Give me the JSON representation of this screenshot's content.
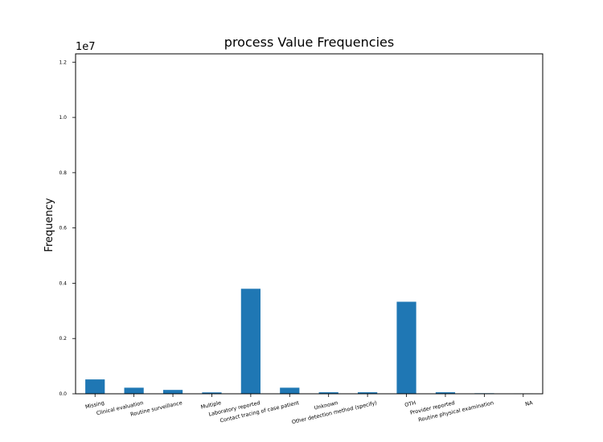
{
  "chart_data": {
    "type": "bar",
    "title": "process Value Frequencies",
    "xlabel": "",
    "ylabel": "Frequency",
    "y_multiplier": "1e7",
    "ylim": [
      0,
      12300000
    ],
    "yticks": [
      0,
      2000000,
      4000000,
      6000000,
      8000000,
      10000000,
      12000000
    ],
    "ytick_labels": [
      "0.0",
      "0.2",
      "0.4",
      "0.6",
      "0.8",
      "1.0",
      "1.2"
    ],
    "categories": [
      "Missing",
      "Clinical evaluation",
      "Routine surveillance",
      "Multiple",
      "Laboratory reported",
      "Contact tracing of case patient",
      "Unknown",
      "Other detection method (specify)",
      "OTH",
      "Provider reported",
      "Routine physical examination",
      "NA"
    ],
    "values": [
      520000,
      220000,
      140000,
      50000,
      3800000,
      220000,
      55000,
      55000,
      3330000,
      55000,
      20000,
      15000
    ],
    "bar_color": "#1f77b4",
    "grid": false,
    "legend": "none"
  }
}
